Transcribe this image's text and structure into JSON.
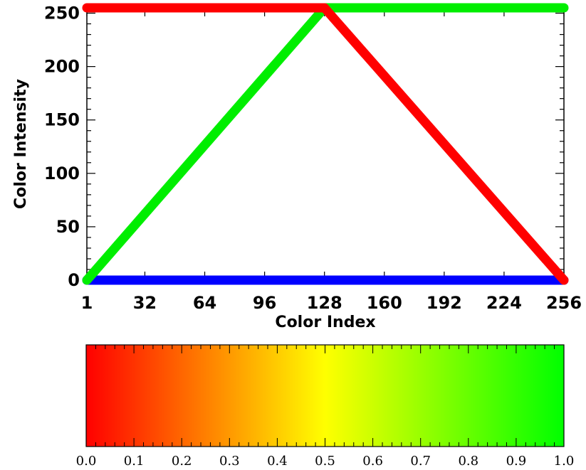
{
  "chart_data": [
    {
      "type": "line",
      "title": "",
      "xlabel": "Color Index",
      "ylabel": "Color Intensity",
      "xlim": [
        1,
        256
      ],
      "ylim": [
        0,
        255
      ],
      "x_ticks": [
        1,
        32,
        64,
        96,
        128,
        160,
        192,
        224,
        256
      ],
      "x_tick_labels": [
        "1",
        "32",
        "64",
        "96",
        "128",
        "160",
        "192",
        "224",
        "256"
      ],
      "y_ticks": [
        0,
        50,
        100,
        150,
        200,
        250
      ],
      "y_tick_labels": [
        "0",
        "50",
        "100",
        "150",
        "200",
        "250"
      ],
      "grid": false,
      "legend": "none",
      "series": [
        {
          "color": "#ff0000",
          "x": [
            1,
            128,
            256
          ],
          "y": [
            255,
            255,
            0
          ]
        },
        {
          "color": "#00ee00",
          "x": [
            1,
            128,
            256
          ],
          "y": [
            0,
            255,
            255
          ]
        },
        {
          "color": "#0000ff",
          "x": [
            1,
            256
          ],
          "y": [
            0,
            0
          ]
        }
      ]
    },
    {
      "type": "colorbar",
      "xlim": [
        0.0,
        1.0
      ],
      "gradient_stops": [
        {
          "offset": 0.0,
          "color": "#ff0000"
        },
        {
          "offset": 0.5,
          "color": "#ffff00"
        },
        {
          "offset": 1.0,
          "color": "#00ff00"
        }
      ],
      "tick_labels": [
        "0.0",
        "0.1",
        "0.2",
        "0.3",
        "0.4",
        "0.5",
        "0.6",
        "0.7",
        "0.8",
        "0.9",
        "1.0"
      ]
    }
  ]
}
